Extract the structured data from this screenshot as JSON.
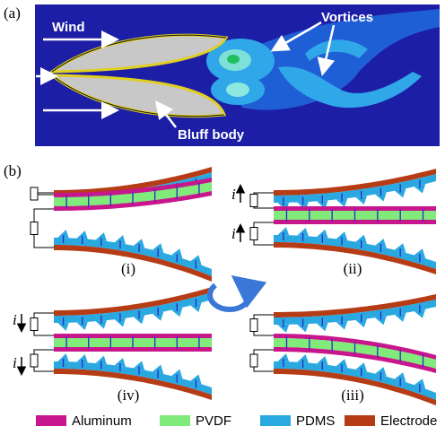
{
  "panel_a": {
    "label": "(a)",
    "wind": "Wind",
    "vortices": "Vortices",
    "bluff_body": "Bluff body"
  },
  "panel_b": {
    "label": "(b)",
    "stages": [
      "(i)",
      "(ii)",
      "(iii)",
      "(iv)"
    ],
    "current_labels": [
      "i",
      "i",
      "i",
      "i"
    ]
  },
  "legend": [
    "Aluminum",
    "PVDF",
    "PDMS",
    "Electrode"
  ]
}
